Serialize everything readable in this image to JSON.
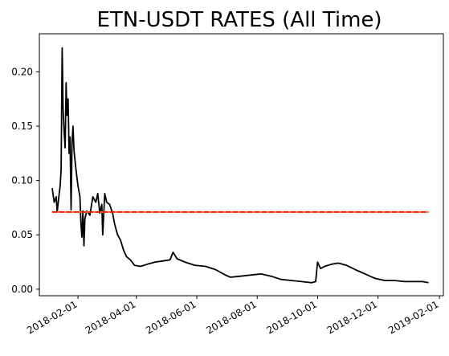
{
  "chart_data": {
    "type": "line",
    "title": "ETN-USDT RATES (All Time)",
    "xlabel": "",
    "ylabel": "",
    "x_axis_type": "date",
    "xlim": [
      "2017-12-24",
      "2019-02-05"
    ],
    "ylim": [
      -0.006,
      0.235
    ],
    "x_ticks": [
      "2018-02-01",
      "2018-04-01",
      "2018-06-01",
      "2018-08-01",
      "2018-10-01",
      "2018-12-01",
      "2019-02-01"
    ],
    "y_ticks": [
      0.0,
      0.05,
      0.1,
      0.15,
      0.2
    ],
    "y_tick_labels": [
      "0.00",
      "0.05",
      "0.10",
      "0.15",
      "0.20"
    ],
    "grid": false,
    "legend": "none",
    "series": [
      {
        "color": "#000000",
        "style": "solid",
        "points": [
          [
            "2018-01-06",
            0.093
          ],
          [
            "2018-01-08",
            0.08
          ],
          [
            "2018-01-10",
            0.085
          ],
          [
            "2018-01-11",
            0.071
          ],
          [
            "2018-01-13",
            0.088
          ],
          [
            "2018-01-14",
            0.095
          ],
          [
            "2018-01-15",
            0.11
          ],
          [
            "2018-01-16",
            0.222
          ],
          [
            "2018-01-17",
            0.165
          ],
          [
            "2018-01-18",
            0.145
          ],
          [
            "2018-01-19",
            0.13
          ],
          [
            "2018-01-20",
            0.19
          ],
          [
            "2018-01-21",
            0.16
          ],
          [
            "2018-01-22",
            0.175
          ],
          [
            "2018-01-23",
            0.125
          ],
          [
            "2018-01-24",
            0.14
          ],
          [
            "2018-01-25",
            0.073
          ],
          [
            "2018-01-26",
            0.135
          ],
          [
            "2018-01-27",
            0.15
          ],
          [
            "2018-01-28",
            0.128
          ],
          [
            "2018-01-30",
            0.11
          ],
          [
            "2018-02-01",
            0.095
          ],
          [
            "2018-02-03",
            0.085
          ],
          [
            "2018-02-04",
            0.06
          ],
          [
            "2018-02-05",
            0.048
          ],
          [
            "2018-02-06",
            0.072
          ],
          [
            "2018-02-07",
            0.04
          ],
          [
            "2018-02-08",
            0.065
          ],
          [
            "2018-02-10",
            0.072
          ],
          [
            "2018-02-13",
            0.068
          ],
          [
            "2018-02-16",
            0.085
          ],
          [
            "2018-02-19",
            0.08
          ],
          [
            "2018-02-21",
            0.088
          ],
          [
            "2018-02-23",
            0.07
          ],
          [
            "2018-02-25",
            0.078
          ],
          [
            "2018-02-26",
            0.05
          ],
          [
            "2018-02-28",
            0.088
          ],
          [
            "2018-03-02",
            0.08
          ],
          [
            "2018-03-05",
            0.078
          ],
          [
            "2018-03-08",
            0.07
          ],
          [
            "2018-03-10",
            0.06
          ],
          [
            "2018-03-13",
            0.05
          ],
          [
            "2018-03-16",
            0.045
          ],
          [
            "2018-03-19",
            0.036
          ],
          [
            "2018-03-22",
            0.03
          ],
          [
            "2018-03-26",
            0.027
          ],
          [
            "2018-03-30",
            0.022
          ],
          [
            "2018-04-05",
            0.021
          ],
          [
            "2018-04-12",
            0.023
          ],
          [
            "2018-04-20",
            0.025
          ],
          [
            "2018-04-28",
            0.026
          ],
          [
            "2018-05-05",
            0.027
          ],
          [
            "2018-05-08",
            0.034
          ],
          [
            "2018-05-12",
            0.028
          ],
          [
            "2018-05-20",
            0.025
          ],
          [
            "2018-05-30",
            0.022
          ],
          [
            "2018-06-10",
            0.021
          ],
          [
            "2018-06-20",
            0.018
          ],
          [
            "2018-06-30",
            0.013
          ],
          [
            "2018-07-05",
            0.011
          ],
          [
            "2018-07-15",
            0.012
          ],
          [
            "2018-07-25",
            0.013
          ],
          [
            "2018-08-05",
            0.014
          ],
          [
            "2018-08-15",
            0.012
          ],
          [
            "2018-08-25",
            0.009
          ],
          [
            "2018-09-05",
            0.008
          ],
          [
            "2018-09-15",
            0.007
          ],
          [
            "2018-09-25",
            0.006
          ],
          [
            "2018-09-29",
            0.007
          ],
          [
            "2018-10-01",
            0.025
          ],
          [
            "2018-10-04",
            0.019
          ],
          [
            "2018-10-08",
            0.021
          ],
          [
            "2018-10-15",
            0.023
          ],
          [
            "2018-10-22",
            0.024
          ],
          [
            "2018-10-30",
            0.022
          ],
          [
            "2018-11-08",
            0.018
          ],
          [
            "2018-11-18",
            0.014
          ],
          [
            "2018-11-28",
            0.01
          ],
          [
            "2018-12-08",
            0.008
          ],
          [
            "2018-12-18",
            0.008
          ],
          [
            "2018-12-28",
            0.007
          ],
          [
            "2019-01-05",
            0.007
          ],
          [
            "2019-01-15",
            0.007
          ],
          [
            "2019-01-21",
            0.006
          ]
        ]
      },
      {
        "color": "#1f77b4",
        "style": "solid",
        "points": [
          [
            "2018-01-06",
            0.071
          ],
          [
            "2019-01-21",
            0.071
          ]
        ]
      },
      {
        "color": "#ff7f0e",
        "style": "solid",
        "points": [
          [
            "2018-01-06",
            0.071
          ],
          [
            "2019-01-21",
            0.071
          ]
        ]
      },
      {
        "color": "#ff0000",
        "style": "dashed",
        "points": [
          [
            "2018-01-06",
            0.071
          ],
          [
            "2019-01-21",
            0.071
          ]
        ]
      }
    ]
  }
}
